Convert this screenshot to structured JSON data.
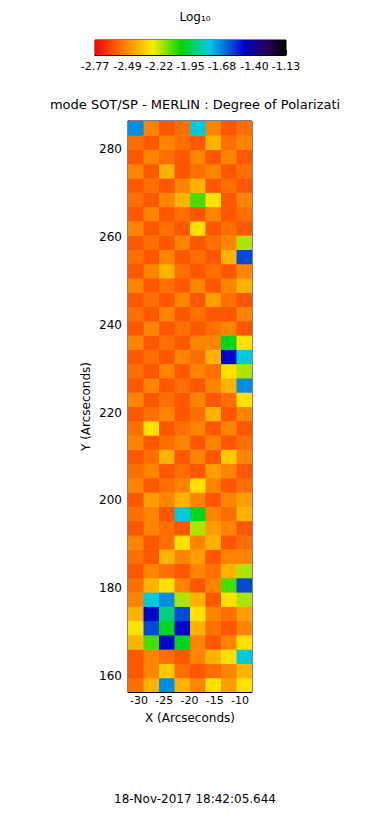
{
  "chart_data": {
    "type": "heatmap",
    "title": "mode SOT/SP - MERLIN : Degree of Polarizati",
    "subtitle": "18-Nov-2017 18:42:05.644",
    "x_label": "X (Arcseconds)",
    "y_label": "Y (Arcseconds)",
    "xlim": [
      -32.2,
      -7.6
    ],
    "ylim": [
      156.4,
      286.4
    ],
    "xticks": [
      -30,
      -25,
      -20,
      -15,
      -10
    ],
    "yticks": [
      160,
      180,
      200,
      220,
      240,
      260,
      280
    ],
    "cells": {
      "x_edges": [
        -32.2,
        -29.125,
        -26.05,
        -22.975,
        -19.9,
        -16.825,
        -13.75,
        -10.675,
        -7.6
      ],
      "y_edges": [
        156.4,
        159.65,
        162.9,
        166.15,
        169.4,
        172.65,
        175.9,
        179.15,
        182.4,
        185.65,
        188.9,
        192.15,
        195.4,
        198.65,
        201.9,
        205.15,
        208.4,
        211.65,
        214.9,
        218.15,
        221.4,
        224.65,
        227.9,
        231.15,
        234.4,
        237.65,
        240.9,
        244.15,
        247.4,
        250.65,
        253.9,
        257.15,
        260.4,
        263.65,
        266.9,
        270.15,
        273.4,
        276.65,
        279.9,
        283.15,
        286.4
      ],
      "values": [
        [
          -2.55,
          -2.4,
          -1.7,
          -2.4,
          -2.5,
          -2.3,
          -2.45,
          -2.3
        ],
        [
          -2.6,
          -2.5,
          -2.35,
          -2.55,
          -2.6,
          -2.55,
          -2.5,
          -2.4
        ],
        [
          -2.6,
          -2.5,
          -2.55,
          -2.6,
          -2.5,
          -2.4,
          -2.3,
          -1.8
        ],
        [
          -2.4,
          -2.1,
          -1.5,
          -2.0,
          -2.5,
          -2.6,
          -2.5,
          -2.3
        ],
        [
          -2.3,
          -1.6,
          -2.0,
          -1.5,
          -2.4,
          -2.55,
          -2.6,
          -2.5
        ],
        [
          -2.4,
          -1.5,
          -1.9,
          -1.6,
          -2.3,
          -2.5,
          -2.55,
          -2.45
        ],
        [
          -2.5,
          -1.8,
          -1.7,
          -2.2,
          -2.4,
          -2.6,
          -2.3,
          -2.2
        ],
        [
          -2.55,
          -2.4,
          -2.3,
          -2.5,
          -2.6,
          -2.5,
          -2.1,
          -1.6
        ],
        [
          -2.6,
          -2.5,
          -2.55,
          -2.6,
          -2.5,
          -2.55,
          -2.4,
          -2.2
        ],
        [
          -2.55,
          -2.6,
          -2.4,
          -2.5,
          -2.45,
          -2.6,
          -2.5,
          -2.5
        ],
        [
          -2.5,
          -2.6,
          -2.55,
          -2.3,
          -2.5,
          -2.4,
          -2.6,
          -2.55
        ],
        [
          -2.6,
          -2.5,
          -2.55,
          -2.6,
          -2.2,
          -2.45,
          -2.5,
          -2.6
        ],
        [
          -2.55,
          -2.5,
          -2.6,
          -1.8,
          -2.0,
          -2.5,
          -2.55,
          -2.4
        ],
        [
          -2.6,
          -2.45,
          -2.5,
          -2.4,
          -2.5,
          -2.6,
          -2.5,
          -2.45
        ],
        [
          -2.5,
          -2.6,
          -2.55,
          -2.5,
          -2.3,
          -2.5,
          -2.6,
          -2.55
        ],
        [
          -2.55,
          -2.5,
          -2.6,
          -2.55,
          -2.6,
          -2.45,
          -2.5,
          -2.6
        ],
        [
          -2.6,
          -2.55,
          -2.4,
          -2.6,
          -2.5,
          -2.6,
          -2.35,
          -2.5
        ],
        [
          -2.5,
          -2.6,
          -2.55,
          -2.5,
          -2.6,
          -2.5,
          -2.6,
          -2.55
        ],
        [
          -2.55,
          -2.3,
          -2.6,
          -2.55,
          -2.5,
          -2.6,
          -2.5,
          -2.6
        ],
        [
          -2.6,
          -2.55,
          -2.5,
          -2.6,
          -2.55,
          -2.4,
          -2.6,
          -2.5
        ],
        [
          -2.5,
          -2.6,
          -2.55,
          -2.6,
          -2.5,
          -2.6,
          -2.55,
          -2.3
        ],
        [
          -2.6,
          -2.5,
          -2.6,
          -2.55,
          -2.6,
          -2.5,
          -2.4,
          -1.7
        ],
        [
          -2.55,
          -2.6,
          -2.5,
          -2.6,
          -2.5,
          -2.55,
          -2.3,
          -2.2
        ],
        [
          -2.6,
          -2.55,
          -2.6,
          -2.5,
          -2.55,
          -2.4,
          -1.5,
          -1.8
        ],
        [
          -2.5,
          -2.6,
          -2.55,
          -2.6,
          -2.5,
          -2.5,
          -2.0,
          -2.3
        ],
        [
          -2.6,
          -2.5,
          -2.6,
          -2.55,
          -2.6,
          -2.55,
          -2.5,
          -2.6
        ],
        [
          -2.55,
          -2.6,
          -2.5,
          -2.6,
          -2.55,
          -2.6,
          -2.6,
          -2.5
        ],
        [
          -2.6,
          -2.55,
          -2.6,
          -2.5,
          -2.6,
          -2.45,
          -2.55,
          -2.6
        ],
        [
          -2.5,
          -2.6,
          -2.55,
          -2.6,
          -2.5,
          -2.6,
          -2.5,
          -2.4
        ],
        [
          -2.6,
          -2.5,
          -2.4,
          -2.55,
          -2.6,
          -2.55,
          -2.6,
          -2.5
        ],
        [
          -2.55,
          -2.6,
          -2.5,
          -2.6,
          -2.55,
          -2.6,
          -2.4,
          -1.6
        ],
        [
          -2.6,
          -2.55,
          -2.6,
          -2.5,
          -2.6,
          -2.55,
          -2.5,
          -2.2
        ],
        [
          -2.5,
          -2.6,
          -2.55,
          -2.6,
          -2.3,
          -2.6,
          -2.55,
          -2.6
        ],
        [
          -2.6,
          -2.5,
          -2.6,
          -2.55,
          -2.6,
          -2.5,
          -2.6,
          -2.55
        ],
        [
          -2.55,
          -2.6,
          -2.5,
          -2.4,
          -2.1,
          -2.3,
          -2.6,
          -2.5
        ],
        [
          -2.6,
          -2.55,
          -2.6,
          -2.5,
          -2.4,
          -2.6,
          -2.55,
          -2.6
        ],
        [
          -2.5,
          -2.6,
          -2.4,
          -2.6,
          -2.55,
          -2.5,
          -2.6,
          -2.55
        ],
        [
          -2.6,
          -2.5,
          -2.55,
          -2.6,
          -2.5,
          -2.6,
          -2.5,
          -2.6
        ],
        [
          -2.55,
          -2.6,
          -2.5,
          -2.55,
          -2.6,
          -2.4,
          -2.55,
          -2.5
        ],
        [
          -1.7,
          -2.5,
          -2.6,
          -2.55,
          -1.8,
          -2.5,
          -2.6,
          -2.55
        ]
      ]
    },
    "colorbar": {
      "title": "Log₁₀",
      "range": [
        -2.77,
        -1.13
      ],
      "ticks": [
        -2.77,
        -2.49,
        -2.22,
        -1.95,
        -1.68,
        {
          "value": -1.4,
          "label": "-1.40"
        },
        -1.13
      ]
    }
  }
}
